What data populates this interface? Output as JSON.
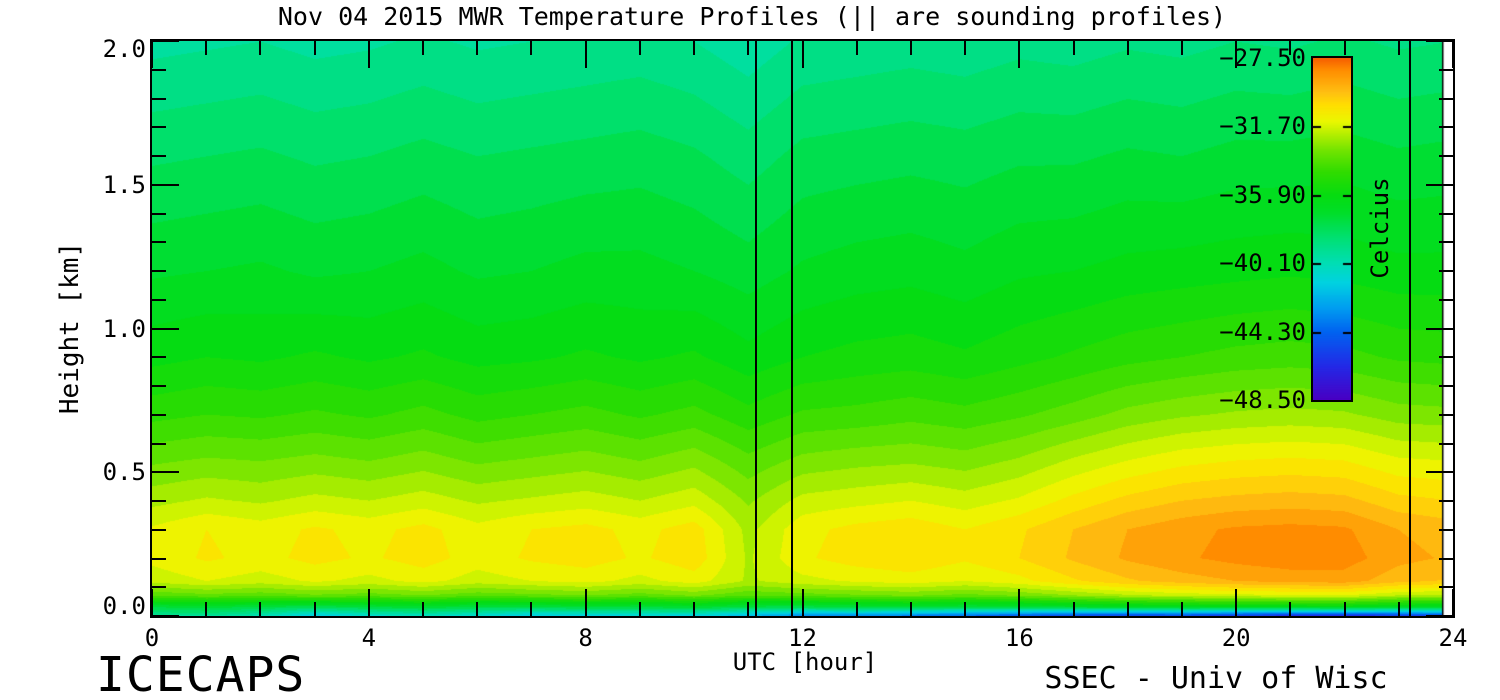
{
  "title": "Nov 04 2015 MWR Temperature Profiles (|| are sounding profiles)",
  "footer": {
    "left": "ICECAPS",
    "right": "SSEC - Univ of Wisc"
  },
  "axes": {
    "x": {
      "label": "UTC [hour]",
      "range": [
        0,
        24
      ],
      "major_tick_hours": [
        0,
        4,
        8,
        12,
        16,
        20,
        24
      ],
      "tick_labels": [
        "0",
        "4",
        "8",
        "12",
        "16",
        "20",
        "24"
      ],
      "minor_step_hours": 1
    },
    "y": {
      "label": "Height [km]",
      "range": [
        0,
        2
      ],
      "major_tick_km": [
        2.0,
        1.5,
        1.0,
        0.5,
        0.0
      ],
      "tick_labels": [
        "2.0",
        "1.5",
        "1.0",
        "0.5",
        "0.0"
      ],
      "minor_step_km": 0.1
    }
  },
  "colorbar": {
    "label": "Celcius",
    "tick_labels": [
      "−27.50",
      "−31.70",
      "−35.90",
      "−40.10",
      "−44.30",
      "−48.50"
    ],
    "tick_values": [
      -27.5,
      -31.7,
      -35.9,
      -40.1,
      -44.3,
      -48.5
    ],
    "top_value": -27.5,
    "bottom_value": -48.5
  },
  "chart_data": {
    "type": "heatmap",
    "title": "Nov 04 2015 MWR Temperature Profiles (|| are sounding profiles)",
    "xlabel": "UTC [hour]",
    "ylabel": "Height [km]",
    "units": "Celcius",
    "x_range_hours": [
      0,
      24
    ],
    "y_range_km": [
      0,
      2
    ],
    "data_end_hour": 23.8,
    "sounding_profile_times_utc": [
      11.15,
      11.8,
      23.2
    ],
    "band_step_c": 0.6,
    "colormap_stops": [
      [
        -48.5,
        "#4800C4"
      ],
      [
        -46.5,
        "#2428E6"
      ],
      [
        -44.3,
        "#0064F0"
      ],
      [
        -42.8,
        "#00A0F0"
      ],
      [
        -41.3,
        "#00D2E0"
      ],
      [
        -40.1,
        "#00DEB4"
      ],
      [
        -38.5,
        "#00E070"
      ],
      [
        -37.0,
        "#00DE28"
      ],
      [
        -35.9,
        "#06DC10"
      ],
      [
        -34.5,
        "#30DC00"
      ],
      [
        -33.2,
        "#70E400"
      ],
      [
        -32.2,
        "#B2EE00"
      ],
      [
        -31.4,
        "#EAF800"
      ],
      [
        -30.4,
        "#FFDF00"
      ],
      [
        -29.6,
        "#FFC012"
      ],
      [
        -28.2,
        "#FF8C00"
      ],
      [
        -27.6,
        "#F86400"
      ],
      [
        -27.3,
        "#F25400"
      ]
    ],
    "x_hours": [
      0,
      1,
      2,
      3,
      4,
      5,
      6,
      7,
      8,
      9,
      10,
      11,
      12,
      13,
      14,
      15,
      16,
      17,
      18,
      19,
      20,
      21,
      22,
      23,
      24
    ],
    "heights_km": [
      0.0,
      0.03,
      0.07,
      0.12,
      0.2,
      0.3,
      0.4,
      0.55,
      0.7,
      0.9,
      1.2,
      1.6,
      2.0
    ],
    "grid_c": [
      [
        -39.5,
        -39.3,
        -40.0,
        -41.5,
        -40.6,
        -40.3,
        -40.8,
        -41.5,
        -41.3,
        -41.0,
        -41.2,
        -42.0,
        -43.2,
        -43.0,
        -43.6,
        -44.0,
        -44.5,
        -45.0,
        -45.3,
        -45.0,
        -45.6,
        -46.0,
        -46.3,
        -45.6,
        -45.0
      ],
      [
        -37.4,
        -37.2,
        -37.5,
        -37.8,
        -37.4,
        -37.1,
        -37.5,
        -37.6,
        -37.2,
        -37.4,
        -37.0,
        -37.6,
        -37.7,
        -37.4,
        -37.2,
        -37.4,
        -37.3,
        -37.0,
        -36.7,
        -36.5,
        -36.4,
        -36.3,
        -36.2,
        -36.6,
        -36.7
      ],
      [
        -33.8,
        -33.5,
        -33.7,
        -33.4,
        -33.6,
        -33.3,
        -33.7,
        -33.5,
        -33.3,
        -33.6,
        -33.2,
        -33.8,
        -33.6,
        -33.4,
        -33.2,
        -33.5,
        -33.2,
        -32.7,
        -32.2,
        -31.9,
        -31.7,
        -31.6,
        -31.5,
        -32.1,
        -32.3
      ],
      [
        -31.9,
        -31.5,
        -31.8,
        -31.4,
        -31.7,
        -31.3,
        -31.8,
        -31.5,
        -31.3,
        -31.7,
        -31.2,
        -32.2,
        -31.7,
        -31.4,
        -31.2,
        -31.5,
        -31.1,
        -30.4,
        -29.8,
        -29.4,
        -29.1,
        -28.9,
        -28.8,
        -29.5,
        -29.8
      ],
      [
        -31.3,
        -30.8,
        -31.1,
        -30.7,
        -31.0,
        -30.6,
        -31.2,
        -30.8,
        -30.6,
        -31.0,
        -30.5,
        -32.2,
        -31.0,
        -30.6,
        -30.4,
        -30.8,
        -30.3,
        -29.6,
        -29.0,
        -28.6,
        -28.3,
        -28.1,
        -28.2,
        -28.9,
        -29.2
      ],
      [
        -31.4,
        -30.9,
        -31.2,
        -30.8,
        -31.1,
        -30.7,
        -31.3,
        -30.9,
        -30.7,
        -31.1,
        -30.6,
        -32.3,
        -31.1,
        -30.7,
        -30.5,
        -30.9,
        -30.4,
        -29.7,
        -29.1,
        -28.7,
        -28.4,
        -28.3,
        -28.4,
        -29.1,
        -29.4
      ],
      [
        -32.3,
        -32.0,
        -32.2,
        -31.9,
        -32.1,
        -31.8,
        -32.2,
        -32.0,
        -31.8,
        -32.1,
        -31.7,
        -32.8,
        -31.9,
        -31.7,
        -31.5,
        -31.8,
        -31.4,
        -30.7,
        -30.1,
        -29.7,
        -29.5,
        -29.4,
        -29.5,
        -30.1,
        -30.3
      ],
      [
        -33.5,
        -33.3,
        -33.4,
        -33.2,
        -33.4,
        -33.1,
        -33.5,
        -33.3,
        -33.1,
        -33.4,
        -33.0,
        -33.8,
        -33.2,
        -33.0,
        -32.9,
        -33.1,
        -32.7,
        -32.1,
        -31.6,
        -31.2,
        -31.0,
        -30.9,
        -31.0,
        -31.5,
        -31.6
      ],
      [
        -34.7,
        -34.5,
        -34.6,
        -34.4,
        -34.6,
        -34.3,
        -34.7,
        -34.5,
        -34.3,
        -34.6,
        -34.3,
        -34.9,
        -34.4,
        -34.3,
        -34.1,
        -34.3,
        -34.0,
        -33.6,
        -33.1,
        -32.8,
        -32.6,
        -32.5,
        -32.6,
        -33.0,
        -33.1
      ],
      [
        -35.9,
        -35.7,
        -35.8,
        -35.6,
        -35.8,
        -35.6,
        -35.9,
        -35.8,
        -35.6,
        -35.8,
        -35.6,
        -36.1,
        -35.7,
        -35.5,
        -35.4,
        -35.6,
        -35.3,
        -35.0,
        -34.7,
        -34.5,
        -34.3,
        -34.2,
        -34.3,
        -34.6,
        -34.7
      ],
      [
        -37.0,
        -36.9,
        -36.8,
        -37.0,
        -36.9,
        -36.7,
        -37.0,
        -36.9,
        -36.7,
        -36.7,
        -36.9,
        -37.2,
        -36.8,
        -36.6,
        -36.5,
        -36.7,
        -36.4,
        -36.3,
        -36.1,
        -36.0,
        -35.9,
        -35.8,
        -35.9,
        -36.1,
        -36.1
      ],
      [
        -38.2,
        -38.1,
        -38.0,
        -38.2,
        -38.1,
        -37.9,
        -38.1,
        -38.0,
        -37.9,
        -37.8,
        -38.0,
        -38.4,
        -37.9,
        -37.8,
        -37.7,
        -37.8,
        -37.6,
        -37.6,
        -37.4,
        -37.5,
        -37.3,
        -37.3,
        -37.2,
        -37.4,
        -37.3
      ],
      [
        -39.5,
        -39.4,
        -39.3,
        -39.5,
        -39.4,
        -39.2,
        -39.4,
        -39.3,
        -39.2,
        -39.1,
        -39.3,
        -39.7,
        -39.2,
        -39.1,
        -39.0,
        -39.1,
        -38.9,
        -39.0,
        -38.8,
        -38.9,
        -38.7,
        -38.8,
        -38.6,
        -38.8,
        -38.7
      ]
    ]
  }
}
